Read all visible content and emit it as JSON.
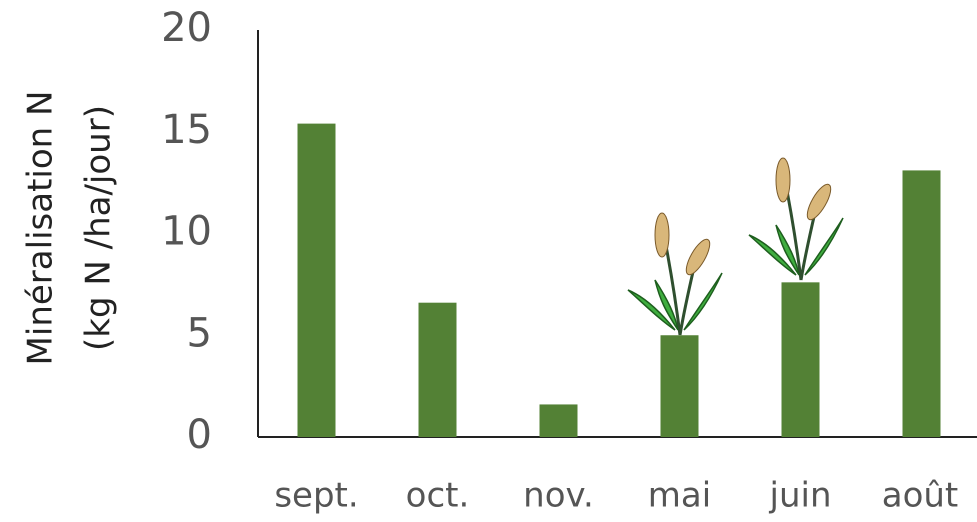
{
  "chart_data": {
    "type": "bar",
    "y_label": [
      "Minéralisation N",
      "(kg N /ha/jour)"
    ],
    "categories": [
      "sept.",
      "oct.",
      "nov.",
      "mai",
      "juin",
      "août"
    ],
    "values": [
      15.4,
      6.6,
      1.6,
      5.0,
      7.6,
      13.1
    ],
    "color": "#538135",
    "ylim": [
      0,
      20
    ],
    "yticks": [
      0,
      5,
      10,
      15,
      20
    ],
    "grid": false
  }
}
